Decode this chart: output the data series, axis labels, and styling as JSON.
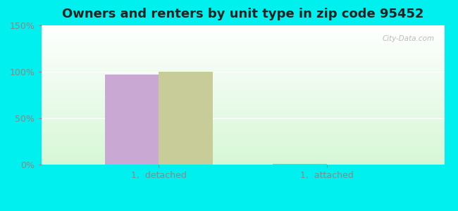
{
  "title": "Owners and renters by unit type in zip code 95452",
  "categories": [
    "1,  detached",
    "1,  attached"
  ],
  "owner_values": [
    97,
    1
  ],
  "renter_values": [
    100,
    0
  ],
  "owner_color": "#c9a8d4",
  "renter_color": "#c8cc99",
  "ylim": [
    0,
    150
  ],
  "yticks": [
    0,
    50,
    100,
    150
  ],
  "yticklabels": [
    "0%",
    "50%",
    "100%",
    "150%"
  ],
  "outer_bg": "#00f0f0",
  "bar_width": 0.32,
  "title_fontsize": 13,
  "watermark": "City-Data.com",
  "xlim": [
    -0.7,
    1.7
  ]
}
